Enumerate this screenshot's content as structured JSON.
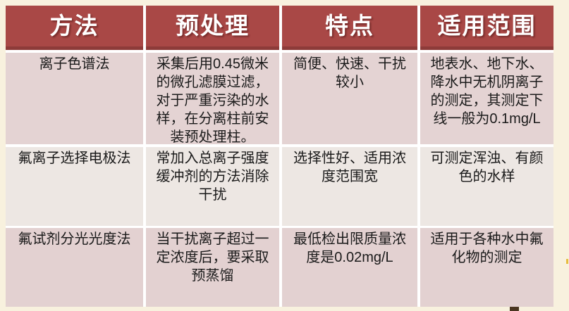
{
  "table": {
    "headers": [
      "方法",
      "预处理",
      "特点",
      "适用范围"
    ],
    "rows": [
      {
        "cells": [
          "离子色谱法",
          "采集后用0.45微米的微孔滤膜过滤，对于严重污染的水样，在分离柱前安装预处理柱。",
          "简便、快速、干扰较小",
          "地表水、地下水、降水中无机阴离子的测定，其测定下线一般为0.1mg/L"
        ]
      },
      {
        "cells": [
          "氟离子选择电极法",
          "常加入总离子强度缓冲剂的方法消除干扰",
          "选择性好、适用浓度范围宽",
          "可测定浑浊、有颜色的水样"
        ]
      },
      {
        "cells": [
          "氟试剂分光光度法",
          "当干扰离子超过一定浓度后，要采取预蒸馏",
          "最低检出限质量浓度是0.02mg/L",
          "适用于各种水中氟化物的测定"
        ]
      }
    ],
    "colors": {
      "header_bg": "#A94846",
      "header_border_bottom": "#8D3B39",
      "header_text": "#FFFFFF",
      "row_odd_bg": "#E4D3D3",
      "row_even_bg": "#EDE7E3",
      "separator": "#FFFFFF",
      "body_text": "#1A1A1A",
      "page_background": "#F8F1DE",
      "corner_square": "#4A3520",
      "yellow_tick": "#E6BC3F"
    }
  }
}
